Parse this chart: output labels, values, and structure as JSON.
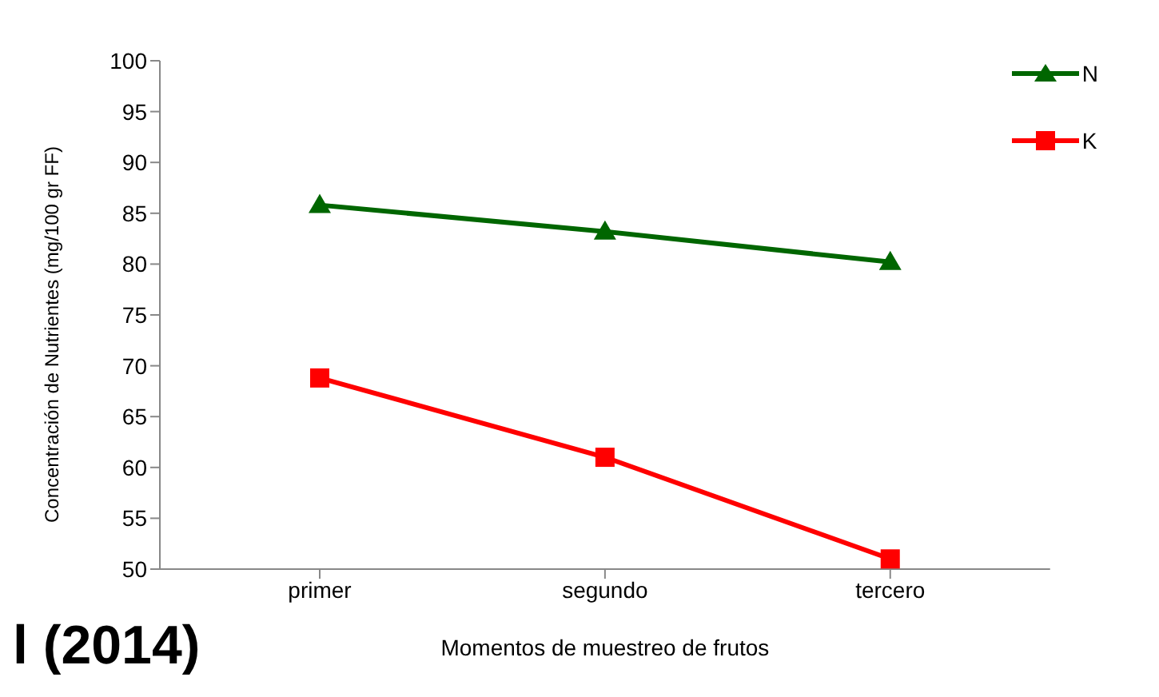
{
  "chart_data": {
    "type": "line",
    "xlabel": "Momentos de muestreo de frutos",
    "ylabel": "Concentración de Nutrientes (mg/100 gr FF)",
    "categories": [
      "primer",
      "segundo",
      "tercero"
    ],
    "series": [
      {
        "name": "N",
        "color": "#006600",
        "marker": "triangle",
        "values": [
          85.8,
          83.2,
          80.2
        ]
      },
      {
        "name": "K",
        "color": "#ff0000",
        "marker": "square",
        "values": [
          68.8,
          61,
          51
        ]
      }
    ],
    "ylim": [
      50,
      100
    ],
    "yticks": [
      50,
      55,
      60,
      65,
      70,
      75,
      80,
      85,
      90,
      95,
      100
    ],
    "grid": false,
    "legend": "top right",
    "annotations": [
      "l (2014)"
    ]
  }
}
